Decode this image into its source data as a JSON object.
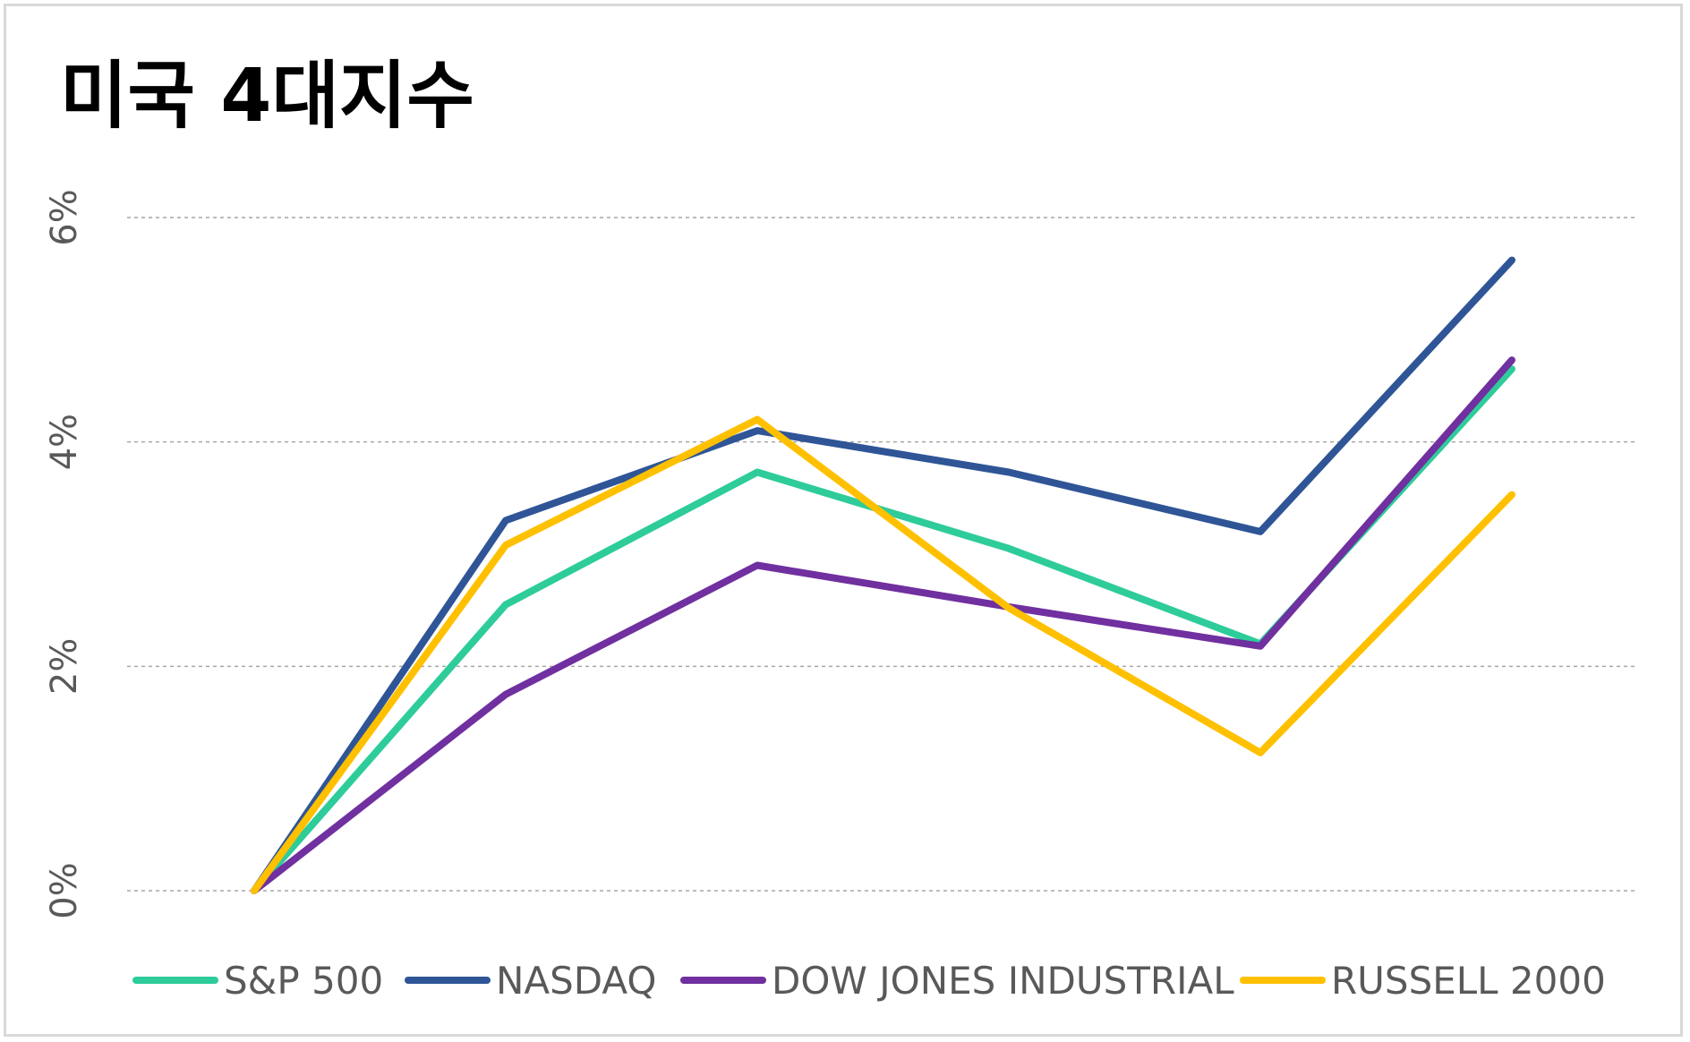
{
  "chart_data": {
    "type": "line",
    "title": "미국 4대지수",
    "xlabel": "",
    "ylabel": "",
    "ylim": [
      0,
      6
    ],
    "yticks": [
      "0%",
      "2%",
      "4%",
      "6%"
    ],
    "grid": true,
    "legend_position": "bottom",
    "x": [
      1,
      2,
      3,
      4,
      5,
      6
    ],
    "series": [
      {
        "name": "S&P 500",
        "color": "#2ecc9a",
        "values": [
          0.0,
          2.55,
          3.73,
          3.05,
          2.2,
          4.65
        ]
      },
      {
        "name": "NASDAQ",
        "color": "#2f5597",
        "values": [
          0.0,
          3.3,
          4.1,
          3.73,
          3.2,
          5.62
        ]
      },
      {
        "name": "DOW JONES INDUSTRIAL",
        "color": "#7030a0",
        "values": [
          0.0,
          1.75,
          2.9,
          2.53,
          2.18,
          4.73
        ]
      },
      {
        "name": "RUSSELL 2000",
        "color": "#ffc000",
        "values": [
          0.0,
          3.08,
          4.2,
          2.52,
          1.23,
          3.53
        ]
      }
    ]
  }
}
